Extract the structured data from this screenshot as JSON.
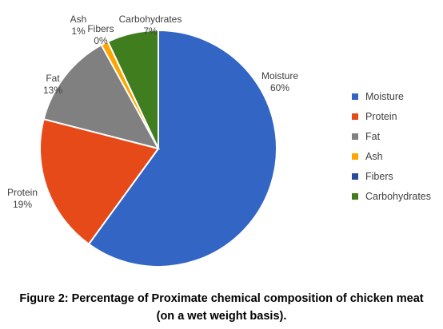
{
  "chart_data": {
    "type": "pie",
    "categories": [
      "Moisture",
      "Protein",
      "Fat",
      "Ash",
      "Fibers",
      "Carbohydrates"
    ],
    "values": [
      60,
      19,
      13,
      1,
      0,
      7
    ],
    "colors": [
      "#3366c4",
      "#e64a19",
      "#808080",
      "#ffa500",
      "#2a4a9e",
      "#3f7d1e"
    ],
    "labels": [
      "Moisture\n60%",
      "Protein\n19%",
      "Fat\n13%",
      "Ash\n1%",
      "Fibers\n0%",
      "Carbohydrates\n7%"
    ],
    "start_angle_deg": 0,
    "direction": "clockwise",
    "legend_position": "right"
  },
  "caption": {
    "line1": "Figure 2: Percentage of Proximate chemical composition of chicken meat",
    "line2": "(on a wet weight basis)."
  }
}
